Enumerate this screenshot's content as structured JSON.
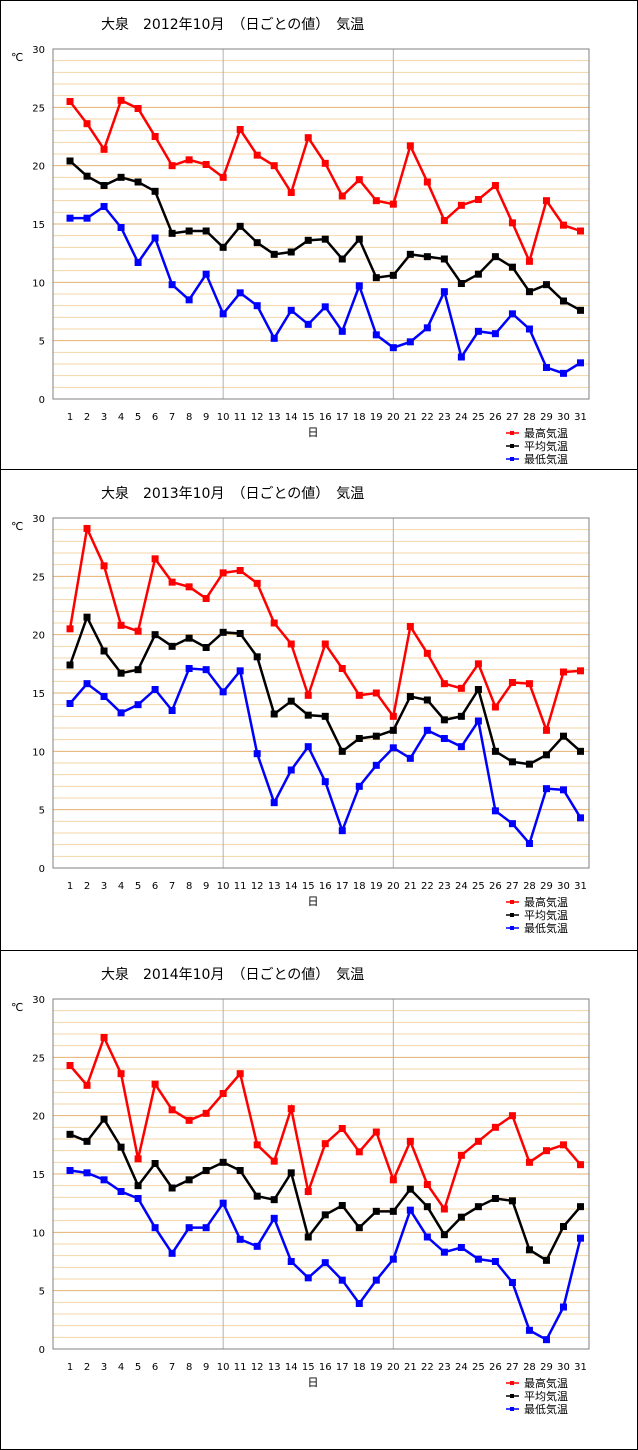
{
  "chart_data": [
    {
      "type": "line",
      "title": "大泉　2012年10月　（日ごとの値）　気温",
      "ylabel": "℃",
      "xlabel": "日",
      "ylim": [
        0,
        30
      ],
      "yticks": [
        "0",
        "5",
        "10",
        "15",
        "20",
        "25",
        "30"
      ],
      "x": [
        "1",
        "2",
        "3",
        "4",
        "5",
        "6",
        "7",
        "8",
        "9",
        "10",
        "11",
        "12",
        "13",
        "14",
        "15",
        "16",
        "17",
        "18",
        "19",
        "20",
        "21",
        "22",
        "23",
        "24",
        "25",
        "26",
        "27",
        "28",
        "29",
        "30",
        "31"
      ],
      "grid": true,
      "legend_position": "bottom-right",
      "series": [
        {
          "name": "最高気温",
          "color": "#ff0000",
          "values": [
            25.5,
            23.6,
            21.4,
            25.6,
            24.9,
            22.5,
            20.0,
            20.5,
            20.1,
            19.0,
            23.1,
            20.9,
            20.0,
            17.7,
            22.4,
            20.2,
            17.4,
            18.8,
            17.0,
            16.7,
            21.7,
            18.6,
            15.3,
            16.6,
            17.1,
            18.3,
            15.1,
            11.8,
            17.0,
            14.9,
            14.4
          ]
        },
        {
          "name": "平均気温",
          "color": "#000000",
          "values": [
            20.4,
            19.1,
            18.3,
            19.0,
            18.6,
            17.8,
            14.2,
            14.4,
            14.4,
            13.0,
            14.8,
            13.4,
            12.4,
            12.6,
            13.6,
            13.7,
            12.0,
            13.7,
            10.4,
            10.6,
            12.4,
            12.2,
            12.0,
            9.9,
            10.7,
            12.2,
            11.3,
            9.2,
            9.8,
            8.4,
            7.6
          ]
        },
        {
          "name": "最低気温",
          "color": "#0000ff",
          "values": [
            15.5,
            15.5,
            16.5,
            14.7,
            11.7,
            13.8,
            9.8,
            8.5,
            10.7,
            7.3,
            9.1,
            8.0,
            5.2,
            7.6,
            6.4,
            7.9,
            5.8,
            9.7,
            5.5,
            4.4,
            4.9,
            6.1,
            9.2,
            3.6,
            5.8,
            5.6,
            7.3,
            6.0,
            2.7,
            2.2,
            3.1
          ]
        }
      ]
    },
    {
      "type": "line",
      "title": "大泉　2013年10月　（日ごとの値）　気温",
      "ylabel": "℃",
      "xlabel": "日",
      "ylim": [
        0,
        30
      ],
      "yticks": [
        "0",
        "5",
        "10",
        "15",
        "20",
        "25",
        "30"
      ],
      "x": [
        "1",
        "2",
        "3",
        "4",
        "5",
        "6",
        "7",
        "8",
        "9",
        "10",
        "11",
        "12",
        "13",
        "14",
        "15",
        "16",
        "17",
        "18",
        "19",
        "20",
        "21",
        "22",
        "23",
        "24",
        "25",
        "26",
        "27",
        "28",
        "29",
        "30",
        "31"
      ],
      "grid": true,
      "legend_position": "bottom-right",
      "series": [
        {
          "name": "最高気温",
          "color": "#ff0000",
          "values": [
            20.5,
            29.1,
            25.9,
            20.8,
            20.3,
            26.5,
            24.5,
            24.1,
            23.1,
            25.3,
            25.5,
            24.4,
            21.0,
            19.2,
            14.8,
            19.2,
            17.1,
            14.8,
            15.0,
            13.0,
            20.7,
            18.4,
            15.8,
            15.4,
            17.5,
            13.8,
            15.9,
            15.8,
            11.8,
            16.8,
            16.9
          ]
        },
        {
          "name": "平均気温",
          "color": "#000000",
          "values": [
            17.4,
            21.5,
            18.6,
            16.7,
            17.0,
            20.0,
            19.0,
            19.7,
            18.9,
            20.2,
            20.1,
            18.1,
            13.2,
            14.3,
            13.1,
            13.0,
            10.0,
            11.1,
            11.3,
            11.8,
            14.7,
            14.4,
            12.7,
            13.0,
            15.3,
            10.0,
            9.1,
            8.9,
            9.7,
            11.3,
            10.0
          ]
        },
        {
          "name": "最低気温",
          "color": "#0000ff",
          "values": [
            14.1,
            15.8,
            14.7,
            13.3,
            14.0,
            15.3,
            13.5,
            17.1,
            17.0,
            15.1,
            16.9,
            9.8,
            5.6,
            8.4,
            10.4,
            7.4,
            3.2,
            7.0,
            8.8,
            10.3,
            9.4,
            11.8,
            11.1,
            10.4,
            12.6,
            4.9,
            3.8,
            2.1,
            6.8,
            6.7,
            4.3
          ]
        }
      ]
    },
    {
      "type": "line",
      "title": "大泉　2014年10月　（日ごとの値）　気温",
      "ylabel": "℃",
      "xlabel": "日",
      "ylim": [
        0,
        30
      ],
      "yticks": [
        "0",
        "5",
        "10",
        "15",
        "20",
        "25",
        "30"
      ],
      "x": [
        "1",
        "2",
        "3",
        "4",
        "5",
        "6",
        "7",
        "8",
        "9",
        "10",
        "11",
        "12",
        "13",
        "14",
        "15",
        "16",
        "17",
        "18",
        "19",
        "20",
        "21",
        "22",
        "23",
        "24",
        "25",
        "26",
        "27",
        "28",
        "29",
        "30",
        "31"
      ],
      "grid": true,
      "legend_position": "bottom-right",
      "series": [
        {
          "name": "最高気温",
          "color": "#ff0000",
          "values": [
            24.3,
            22.6,
            26.7,
            23.6,
            16.3,
            22.7,
            20.5,
            19.6,
            20.2,
            21.9,
            23.6,
            17.5,
            16.1,
            20.6,
            13.5,
            17.6,
            18.9,
            16.9,
            18.6,
            14.5,
            17.8,
            14.1,
            12.0,
            16.6,
            17.8,
            19.0,
            20.0,
            16.0,
            17.0,
            17.5,
            15.8
          ]
        },
        {
          "name": "平均気温",
          "color": "#000000",
          "values": [
            18.4,
            17.8,
            19.7,
            17.3,
            14.0,
            15.9,
            13.8,
            14.5,
            15.3,
            16.0,
            15.3,
            13.1,
            12.8,
            15.1,
            9.6,
            11.5,
            12.3,
            10.4,
            11.8,
            11.8,
            13.7,
            12.2,
            9.8,
            11.3,
            12.2,
            12.9,
            12.7,
            8.5,
            7.6,
            10.5,
            12.2
          ]
        },
        {
          "name": "最低気温",
          "color": "#0000ff",
          "values": [
            15.3,
            15.1,
            14.5,
            13.5,
            12.9,
            10.4,
            8.2,
            10.4,
            10.4,
            12.5,
            9.4,
            8.8,
            11.2,
            7.5,
            6.1,
            7.4,
            5.9,
            3.9,
            5.9,
            7.7,
            11.9,
            9.6,
            8.3,
            8.7,
            7.7,
            7.5,
            5.7,
            1.6,
            0.8,
            3.6,
            9.5
          ]
        }
      ]
    }
  ]
}
